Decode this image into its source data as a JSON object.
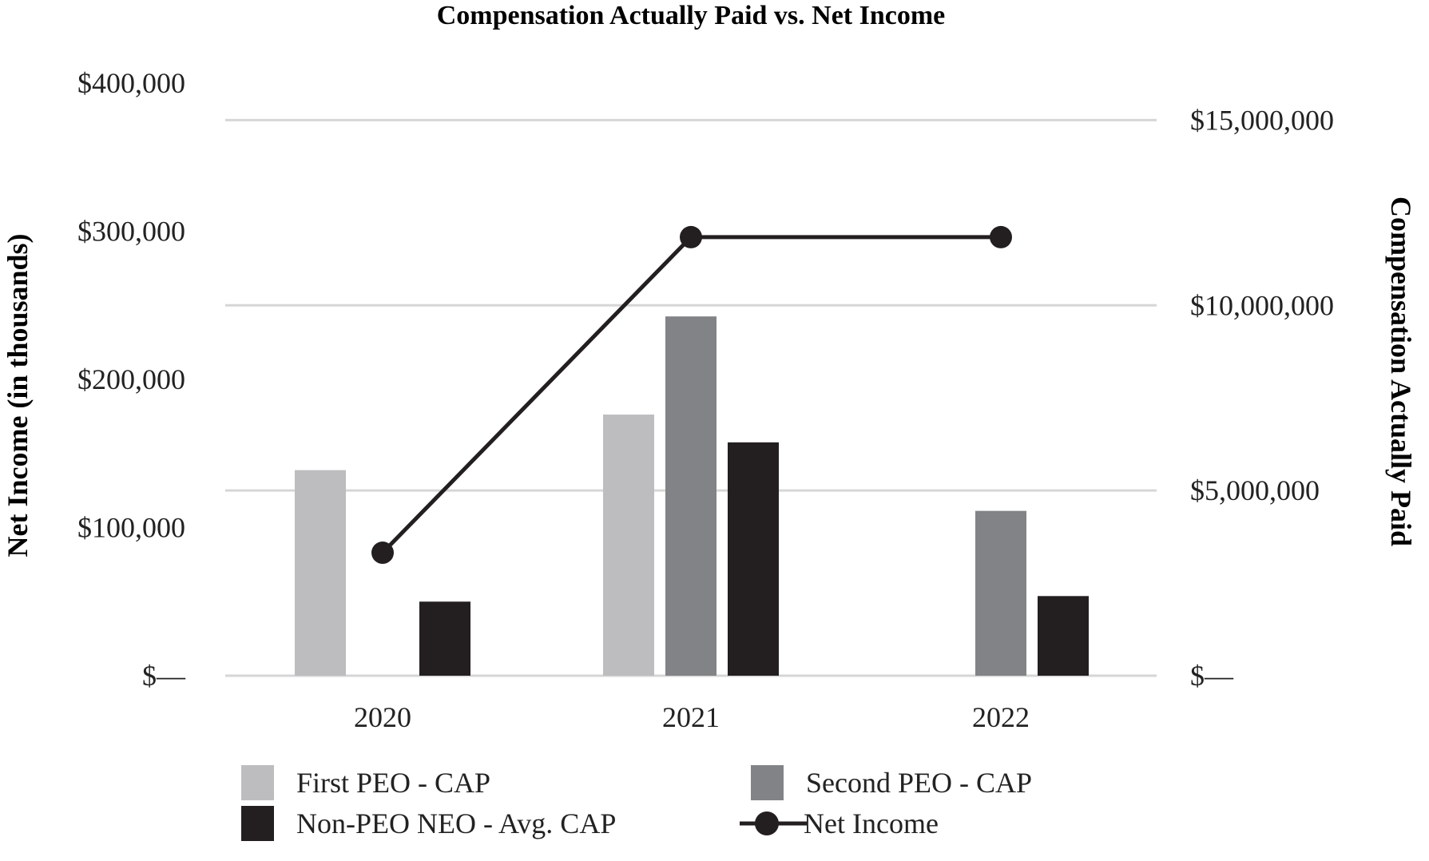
{
  "chart_data": {
    "type": "bar",
    "title": "Compensation Actually Paid vs. Net Income",
    "categories": [
      "2020",
      "2021",
      "2022"
    ],
    "left_axis": {
      "label": "Net Income (in thousands)",
      "range": [
        0,
        400000
      ],
      "ticks": [
        {
          "value": 0,
          "label": "$—"
        },
        {
          "value": 100000,
          "label": "$100,000"
        },
        {
          "value": 200000,
          "label": "$200,000"
        },
        {
          "value": 300000,
          "label": "$300,000"
        },
        {
          "value": 400000,
          "label": "$400,000"
        }
      ]
    },
    "right_axis": {
      "label": "Compensation Actually Paid",
      "range": [
        0,
        16000000
      ],
      "ticks": [
        {
          "value": 0,
          "label": "$—"
        },
        {
          "value": 5000000,
          "label": "$5,000,000"
        },
        {
          "value": 10000000,
          "label": "$10,000,000"
        },
        {
          "value": 15000000,
          "label": "$15,000,000"
        }
      ],
      "grid": true
    },
    "series": [
      {
        "name": "First PEO - CAP",
        "type": "bar",
        "axis": "right",
        "color": "#bdbdc0",
        "values": [
          5550000,
          7050000,
          null
        ]
      },
      {
        "name": "Second PEO - CAP",
        "type": "bar",
        "axis": "right",
        "color": "#828386",
        "values": [
          null,
          9700000,
          4450000
        ]
      },
      {
        "name": "Non-PEO NEO - Avg. CAP",
        "type": "bar",
        "axis": "right",
        "color": "#231f20",
        "values": [
          2000000,
          6300000,
          2150000
        ]
      },
      {
        "name": "Net Income",
        "type": "line",
        "axis": "left",
        "color": "#231f20",
        "values": [
          83000,
          296000,
          296000
        ]
      }
    ],
    "legend": [
      "First PEO - CAP",
      "Second PEO - CAP",
      "Non-PEO NEO - Avg. CAP",
      "Net Income"
    ]
  }
}
